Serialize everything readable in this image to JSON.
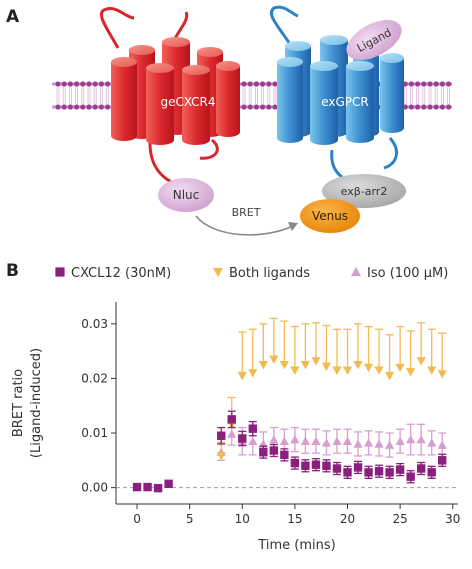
{
  "panel_a": {
    "label": "A",
    "receptor_left_label": "geCXCR4",
    "receptor_right_label": "exGPCR",
    "ligand_label": "Ligand",
    "nluc_label": "Nluc",
    "arrestin_label": "exβ-arr2",
    "venus_label": "Venus",
    "bret_label": "BRET",
    "colors": {
      "receptor_left": "#d8262b",
      "receptor_right": "#2a83c7",
      "ligand": "#d9a9d6",
      "nluc": "#dbb3da",
      "arrestin": "#b5b5b5",
      "venus": "#f29111",
      "membrane": "#9b3d94"
    }
  },
  "panel_b": {
    "label": "B",
    "chart_data": {
      "type": "scatter",
      "xlabel": "Time (mins)",
      "ylabel_line1": "BRET ratio",
      "ylabel_line2": "(Ligand-induced)",
      "xlim": [
        -2,
        30.5
      ],
      "ylim": [
        -0.003,
        0.034
      ],
      "xticks": [
        "0",
        "5",
        "10",
        "15",
        "20",
        "25",
        "30"
      ],
      "yticks": [
        "0.00",
        "0.01",
        "0.02",
        "0.03"
      ],
      "legend_position": "top",
      "series": [
        {
          "name": "CXCL12 (30nM)",
          "marker": "square",
          "color": "#8a1f7d",
          "x": [
            0,
            1,
            2,
            3,
            8,
            9,
            10,
            11,
            12,
            13,
            14,
            15,
            16,
            17,
            18,
            19,
            20,
            21,
            22,
            23,
            24,
            25,
            26,
            27,
            28,
            29
          ],
          "y": [
            0.0001,
            0.0001,
            -0.0001,
            0.0007,
            0.0095,
            0.0125,
            0.009,
            0.0108,
            0.0065,
            0.0068,
            0.006,
            0.0045,
            0.004,
            0.0042,
            0.004,
            0.0035,
            0.0028,
            0.0037,
            0.0028,
            0.003,
            0.0028,
            0.0033,
            0.002,
            0.0035,
            0.0028,
            0.005
          ],
          "err": [
            0,
            0,
            0,
            0,
            0.0015,
            0.0015,
            0.0013,
            0.0013,
            0.0011,
            0.0011,
            0.0011,
            0.0011,
            0.0011,
            0.0011,
            0.0011,
            0.0011,
            0.0011,
            0.0011,
            0.0011,
            0.0011,
            0.0011,
            0.0011,
            0.0011,
            0.0011,
            0.0011,
            0.0011
          ]
        },
        {
          "name": "Both ligands",
          "marker": "triangle-down",
          "color": "#f2bb52",
          "x": [
            8,
            9,
            10,
            11,
            12,
            13,
            14,
            15,
            16,
            17,
            18,
            19,
            20,
            21,
            22,
            23,
            24,
            25,
            26,
            27,
            28,
            29
          ],
          "y": [
            0.0058,
            0.0115,
            0.0205,
            0.021,
            0.0225,
            0.0235,
            0.0225,
            0.0215,
            0.0225,
            0.0232,
            0.0222,
            0.0215,
            0.0215,
            0.0225,
            0.022,
            0.0215,
            0.0205,
            0.022,
            0.0212,
            0.0232,
            0.0215,
            0.0208
          ],
          "err": [
            0.0025,
            0.005,
            0.008,
            0.008,
            0.0075,
            0.0075,
            0.008,
            0.008,
            0.0075,
            0.007,
            0.0075,
            0.0075,
            0.0075,
            0.0075,
            0.0075,
            0.0075,
            0.0075,
            0.0075,
            0.0075,
            0.007,
            0.0075,
            0.0075
          ]
        },
        {
          "name": "Iso (100 µM)",
          "marker": "triangle-up",
          "color": "#d69fd0",
          "x": [
            8,
            9,
            10,
            11,
            12,
            13,
            14,
            15,
            16,
            17,
            18,
            19,
            20,
            21,
            22,
            23,
            24,
            25,
            26,
            27,
            28,
            29
          ],
          "y": [
            0.0065,
            0.0098,
            0.0085,
            0.0085,
            0.008,
            0.0088,
            0.0085,
            0.0088,
            0.0085,
            0.0085,
            0.0082,
            0.0085,
            0.0085,
            0.008,
            0.0082,
            0.008,
            0.0078,
            0.0085,
            0.0088,
            0.0088,
            0.0082,
            0.0078
          ],
          "err": [
            0.0015,
            0.002,
            0.0025,
            0.0025,
            0.0022,
            0.0022,
            0.0022,
            0.0022,
            0.0022,
            0.0022,
            0.0022,
            0.0022,
            0.0022,
            0.0022,
            0.0022,
            0.0022,
            0.0022,
            0.0022,
            0.0028,
            0.0028,
            0.0022,
            0.0022
          ]
        }
      ]
    }
  }
}
